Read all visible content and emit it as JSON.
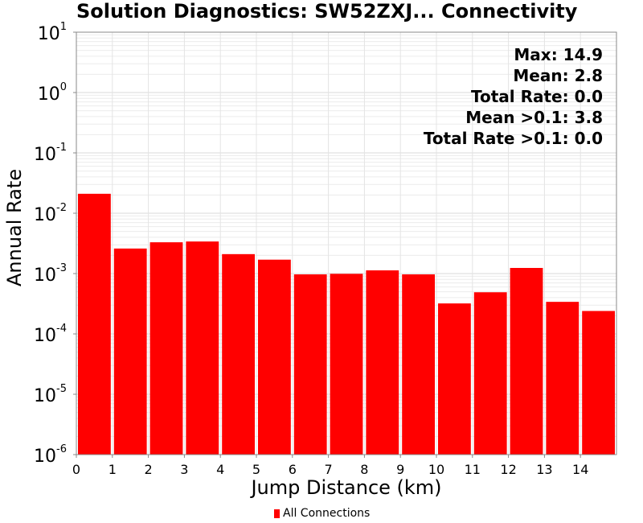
{
  "chart_data": {
    "type": "bar",
    "title": "Solution Diagnostics: SW52ZXJ... Connectivity",
    "xlabel": "Jump Distance (km)",
    "ylabel": "Annual Rate",
    "yscale": "log",
    "ylim": [
      1e-06,
      10
    ],
    "xlim": [
      0,
      15
    ],
    "x_ticks": [
      "0",
      "1",
      "2",
      "3",
      "4",
      "5",
      "6",
      "7",
      "8",
      "9",
      "10",
      "11",
      "12",
      "13",
      "14"
    ],
    "y_tick_exponents": [
      "-6",
      "-5",
      "-4",
      "-3",
      "-2",
      "-1",
      "0",
      "1"
    ],
    "y_tick_base": "10",
    "bar_color": "#ff0000",
    "grid": true,
    "legend_placement": "bottom",
    "series": [
      {
        "name": "All Connections",
        "bins": [
          [
            0,
            1
          ],
          [
            1,
            2
          ],
          [
            2,
            3
          ],
          [
            3,
            4
          ],
          [
            4,
            5
          ],
          [
            5,
            6
          ],
          [
            6,
            7
          ],
          [
            7,
            8
          ],
          [
            8,
            9
          ],
          [
            9,
            10
          ],
          [
            10,
            11
          ],
          [
            11,
            12
          ],
          [
            12,
            13
          ],
          [
            13,
            14
          ],
          [
            14,
            15
          ]
        ],
        "values": [
          0.021,
          0.0026,
          0.0033,
          0.0034,
          0.0021,
          0.0017,
          0.00097,
          0.00099,
          0.00113,
          0.00097,
          0.00032,
          0.00049,
          0.00124,
          0.00034,
          0.00024
        ]
      }
    ],
    "annotations": [
      "Max: 14.9",
      "Mean: 2.8",
      "Total Rate: 0.0",
      "Mean >0.1: 3.8",
      "Total Rate >0.1: 0.0"
    ]
  }
}
